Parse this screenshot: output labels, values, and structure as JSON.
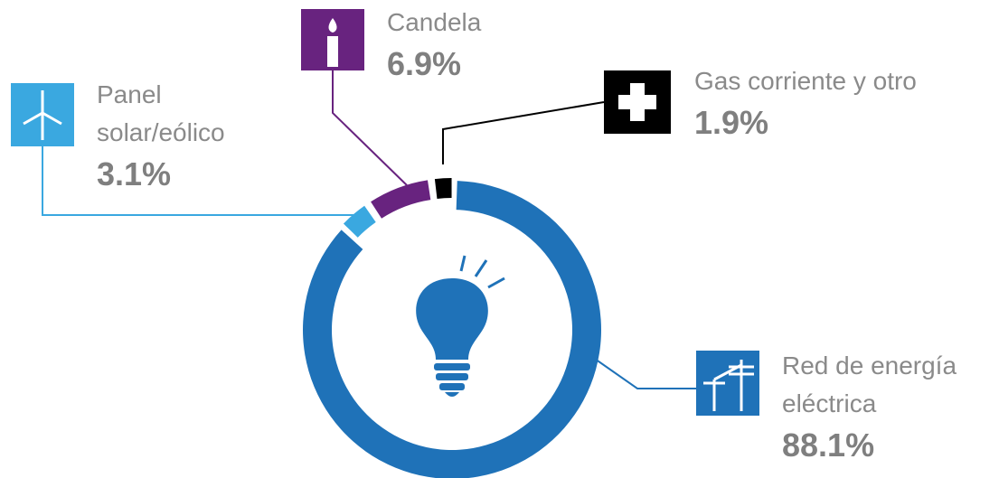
{
  "chart_data": {
    "type": "donut",
    "categories": [
      "Red de energía eléctrica",
      "Panel solar/eólico",
      "Candela",
      "Gas corriente y otro"
    ],
    "values": [
      88.1,
      3.1,
      6.9,
      1.9
    ],
    "value_labels": [
      "88.1%",
      "3.1%",
      "6.9%",
      "1.9%"
    ],
    "colors": [
      "#1f72b8",
      "#3aa8e0",
      "#68237f",
      "#000000"
    ]
  }
}
